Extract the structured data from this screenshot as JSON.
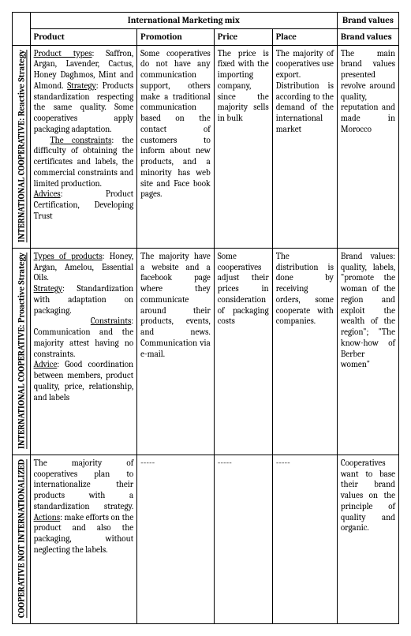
{
  "headers": {
    "mix": "International Marketing mix",
    "brand": "Brand values",
    "product": "Product",
    "promotion": "Promotion",
    "price": "Price",
    "place": "Place",
    "brand2": "Brand values"
  },
  "rows": [
    {
      "label": "INTERNATIONAL COOPERATIVE: Reactive Strategy",
      "product_h1": "Product types",
      "product_t1": ": Saffron, Argan, Lavender, Cactus, Honey Daghmos, Mint and Almond. ",
      "product_h2": "Strategy",
      "product_t2": ": Products standardization respecting the same quality. Some cooperatives apply packaging adaptation.",
      "product_h3": "The constraints",
      "product_t3": ": the difficulty of obtaining the certificates and labels, the commercial constraints and limited production.",
      "product_h4": "Advices",
      "product_t4": ": Product Certification, Developing Trust",
      "promotion": "Some cooperatives do not have any communication support, others make a traditional communication based on the contact of customers to inform about new products, and a minority has web site and Face book pages.",
      "price": "The price is fixed with the importing company, since the majority sells in bulk",
      "place": "The majority of cooperatives use export. Distribution is according to the demand of the international market",
      "brand": "The main brand values presented revolve around quality, reputation and made in Morocco"
    },
    {
      "label": "INTERNATIONAL COOPERATIVE: Proactive Strategy",
      "product_h1": "Types of products",
      "product_t1": ": Honey, Argan, Amelou, Essential Oils.",
      "product_h2": "Strategy",
      "product_t2": ": Standardization with adaptation on packaging.",
      "product_h3": "Constraints",
      "product_t3": ": Communication and the majority attest having no constraints.",
      "product_h4": "Advice",
      "product_t4": ": Good coordination between members, product quality, price, relationship, and labels",
      "promotion": "The majority have a website and a facebook page where they communicate around their products, events, and news. Communication via e-mail.",
      "price": "Some cooperatives adjust their prices in consideration of packaging costs",
      "place": "The distribution is done by receiving orders, some cooperate with companies.",
      "brand": "Brand values: quality, labels, \"promote the woman of the region and exploit the wealth of the region\"; \"The know-how of Berber women\""
    },
    {
      "label": "COOPERATIVE NOT INTERNATIONALIZED",
      "product_t1": "The majority of cooperatives plan to internationalize their products with a standardization strategy. ",
      "product_h2": "Actions",
      "product_t2": ": make efforts on the product and also the packaging, without neglecting the labels.",
      "promotion": "-----",
      "price": "-----",
      "place": "-----",
      "brand": "Cooperatives want to base their brand values on the principle of quality and organic."
    }
  ]
}
